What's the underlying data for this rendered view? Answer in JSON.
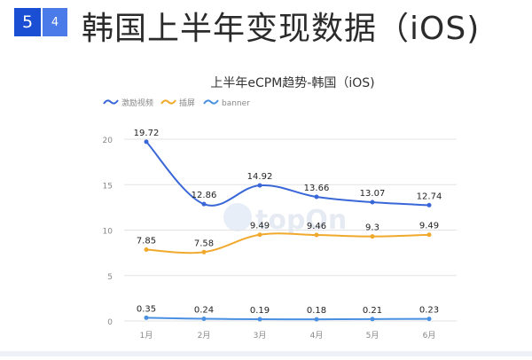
{
  "header": {
    "section_number": "5",
    "sub_number": "4",
    "title": "韩国上半年变现数据（iOS)"
  },
  "watermark": {
    "text": "topOn"
  },
  "colors": {
    "series_blue": "#3a67d8",
    "series_orange": "#f0a92c",
    "series_lightblue": "#4a90e2",
    "grid": "#e3e3e3",
    "axis_text": "#888888"
  },
  "chart_data": {
    "type": "line",
    "title": "上半年eCPM趋势-韩国（iOS)",
    "categories": [
      "1月",
      "2月",
      "3月",
      "4月",
      "5月",
      "6月"
    ],
    "ylim": [
      0,
      20
    ],
    "yticks": [
      0,
      5,
      10,
      15,
      20
    ],
    "grid": true,
    "legend_position": "top-left",
    "series": [
      {
        "name": "激励视频",
        "color": "#3a67d8",
        "values": [
          19.72,
          12.86,
          14.92,
          13.66,
          13.07,
          12.74
        ],
        "labels": [
          "19.72",
          "12.86",
          "14.92",
          "13.66",
          "13.07",
          "12.74"
        ]
      },
      {
        "name": "插屏",
        "color": "#f0a92c",
        "values": [
          7.85,
          7.58,
          9.49,
          9.46,
          9.3,
          9.49
        ],
        "labels": [
          "7.85",
          "7.58",
          "9.49",
          "9.46",
          "9.3",
          "9.49"
        ]
      },
      {
        "name": "banner",
        "color": "#4a90e2",
        "values": [
          0.35,
          0.24,
          0.19,
          0.18,
          0.21,
          0.23
        ],
        "labels": [
          "0.35",
          "0.24",
          "0.19",
          "0.18",
          "0.21",
          "0.23"
        ]
      }
    ]
  }
}
